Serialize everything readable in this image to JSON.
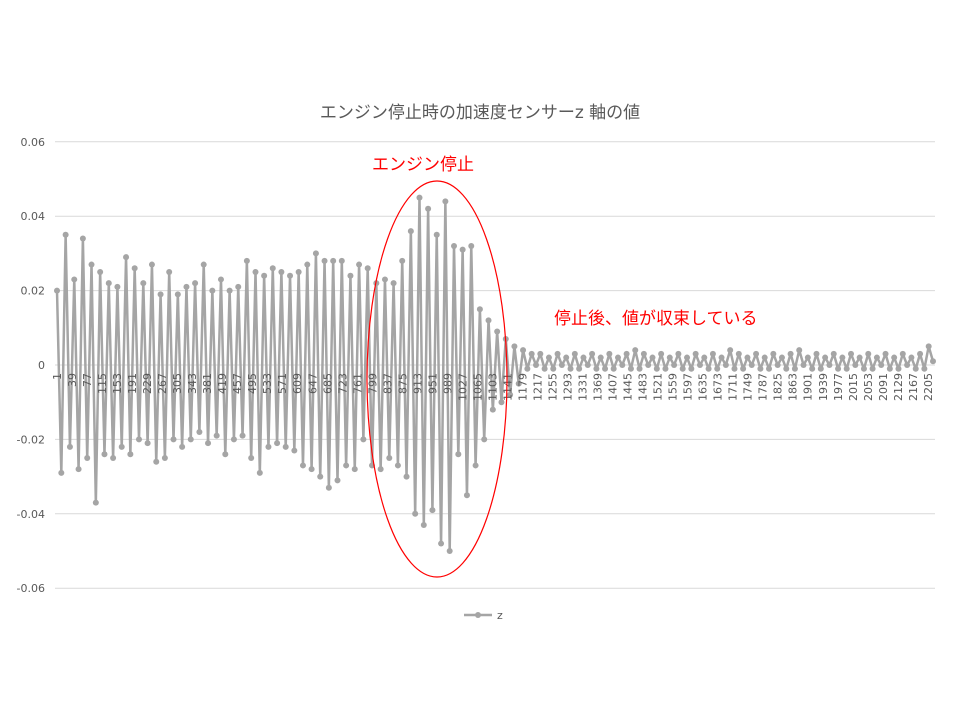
{
  "chart_data": {
    "type": "line",
    "title": "エンジン停止時の加速度センサーz 軸の値",
    "xlabel": "",
    "ylabel": "",
    "ylim": [
      -0.06,
      0.06
    ],
    "yticks": [
      "0.06",
      "0.04",
      "0.02",
      "0",
      "-0.02",
      "-0.04",
      "-0.06"
    ],
    "xrange": [
      1,
      2218
    ],
    "xtick_labels": [
      "1",
      "39",
      "77",
      "115",
      "153",
      "191",
      "229",
      "267",
      "305",
      "343",
      "381",
      "419",
      "457",
      "495",
      "533",
      "571",
      "609",
      "647",
      "685",
      "723",
      "761",
      "799",
      "837",
      "875",
      "913",
      "951",
      "989",
      "1027",
      "1065",
      "1103",
      "1141",
      "1179",
      "1217",
      "1255",
      "1293",
      "1331",
      "1369",
      "1407",
      "1445",
      "1483",
      "1521",
      "1559",
      "1597",
      "1635",
      "1673",
      "1711",
      "1749",
      "1787",
      "1825",
      "1863",
      "1901",
      "1939",
      "1977",
      "2015",
      "2053",
      "2091",
      "2129",
      "2167",
      "2205"
    ],
    "grid": true,
    "legend": "bottom",
    "series": [
      {
        "name": "z",
        "color": "#a5a5a5",
        "values": [
          0.02,
          -0.029,
          0.035,
          -0.022,
          0.023,
          -0.028,
          0.034,
          -0.025,
          0.027,
          -0.037,
          0.025,
          -0.024,
          0.022,
          -0.025,
          0.021,
          -0.022,
          0.029,
          -0.024,
          0.026,
          -0.02,
          0.022,
          -0.021,
          0.027,
          -0.026,
          0.019,
          -0.025,
          0.025,
          -0.02,
          0.019,
          -0.022,
          0.021,
          -0.02,
          0.022,
          -0.018,
          0.027,
          -0.021,
          0.02,
          -0.019,
          0.023,
          -0.024,
          0.02,
          -0.02,
          0.021,
          -0.019,
          0.028,
          -0.025,
          0.025,
          -0.029,
          0.024,
          -0.022,
          0.026,
          -0.021,
          0.025,
          -0.022,
          0.024,
          -0.023,
          0.025,
          -0.027,
          0.027,
          -0.028,
          0.03,
          -0.03,
          0.028,
          -0.033,
          0.028,
          -0.031,
          0.028,
          -0.027,
          0.024,
          -0.028,
          0.027,
          -0.02,
          0.026,
          -0.027,
          0.022,
          -0.028,
          0.023,
          -0.025,
          0.022,
          -0.027,
          0.028,
          -0.03,
          0.036,
          -0.04,
          0.045,
          -0.043,
          0.042,
          -0.039,
          0.035,
          -0.048,
          0.044,
          -0.05,
          0.032,
          -0.024,
          0.031,
          -0.035,
          0.032,
          -0.027,
          0.015,
          -0.02,
          0.012,
          -0.012,
          0.009,
          -0.01,
          0.007,
          -0.008,
          0.005,
          -0.005,
          0.004,
          -0.001,
          0.003,
          0.0,
          0.003,
          -0.001,
          0.002,
          -0.001,
          0.003,
          0.0,
          0.002,
          -0.001,
          0.003,
          -0.001,
          0.002,
          0.0,
          0.003,
          -0.001,
          0.002,
          -0.001,
          0.003,
          -0.001,
          0.002,
          0.0,
          0.003,
          -0.001,
          0.004,
          -0.001,
          0.003,
          0.0,
          0.002,
          -0.001,
          0.003,
          -0.001,
          0.002,
          0.0,
          0.003,
          -0.001,
          0.002,
          -0.001,
          0.003,
          0.0,
          0.002,
          -0.001,
          0.003,
          -0.001,
          0.002,
          0.0,
          0.004,
          -0.001,
          0.003,
          -0.001,
          0.002,
          0.0,
          0.003,
          -0.001,
          0.002,
          -0.001,
          0.003,
          0.0,
          0.002,
          -0.001,
          0.003,
          -0.001,
          0.004,
          0.0,
          0.002,
          -0.001,
          0.003,
          -0.001,
          0.002,
          0.0,
          0.003,
          -0.001,
          0.002,
          -0.001,
          0.003,
          0.0,
          0.002,
          -0.001,
          0.003,
          -0.001,
          0.002,
          0.0,
          0.003,
          -0.001,
          0.002,
          -0.001,
          0.003,
          0.0,
          0.002,
          -0.001,
          0.003,
          -0.001,
          0.005,
          0.001
        ]
      }
    ],
    "annotations": {
      "engine_stop": "エンジン停止",
      "after_stop": "停止後、値が収束している",
      "highlight_color": "#ff0000"
    }
  }
}
